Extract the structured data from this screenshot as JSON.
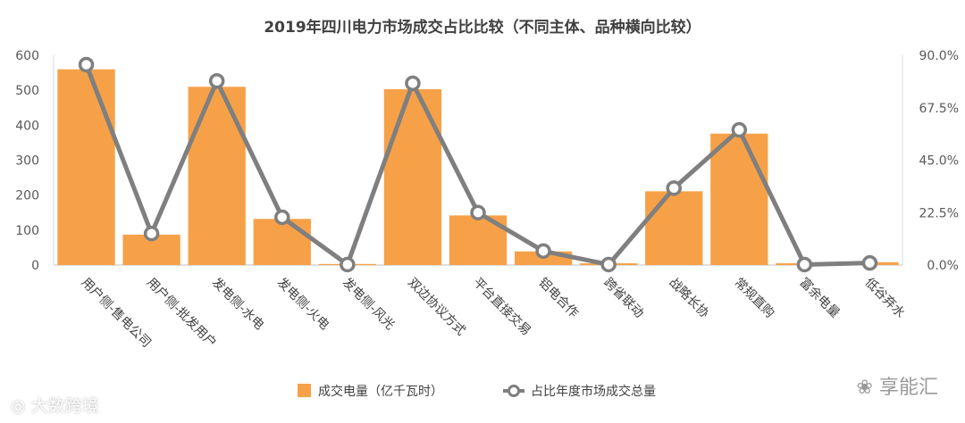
{
  "chart_data": {
    "type": "bar",
    "title": "2019年四川电力市场成交占比比较（不同主体、品种横向比较）",
    "categories": [
      "用户侧-售电公司",
      "用户侧-批发用户",
      "发电侧-水电",
      "发电侧-火电",
      "发电侧-风光",
      "双边协议方式",
      "平台直接交易",
      "铝电合作",
      "跨省联动",
      "战略长协",
      "常规直购",
      "富余电量",
      "低谷弃水"
    ],
    "series": [
      {
        "name": "成交电量（亿千瓦时）",
        "kind": "bar",
        "axis": "left",
        "color": "#F6A148",
        "values": [
          560,
          87,
          510,
          132,
          3,
          503,
          142,
          39,
          5,
          211,
          376,
          5,
          8
        ]
      },
      {
        "name": "占比年度市场成交总量",
        "kind": "line",
        "axis": "right",
        "color": "#7F7F7F",
        "values": [
          0.86,
          0.135,
          0.79,
          0.205,
          0.002,
          0.78,
          0.225,
          0.06,
          0.002,
          0.33,
          0.58,
          0.002,
          0.009
        ]
      }
    ],
    "y_left": {
      "lim": [
        0,
        600
      ],
      "ticks": [
        "0",
        "100",
        "200",
        "300",
        "400",
        "500",
        "600"
      ]
    },
    "y_right": {
      "lim": [
        0,
        0.9
      ],
      "ticks": [
        "0.0%",
        "22.5%",
        "45.0%",
        "67.5%",
        "90.0%"
      ]
    },
    "grid": false,
    "legend": "bottom"
  },
  "watermarks": {
    "left": "大数跨境",
    "right": "享能汇"
  }
}
